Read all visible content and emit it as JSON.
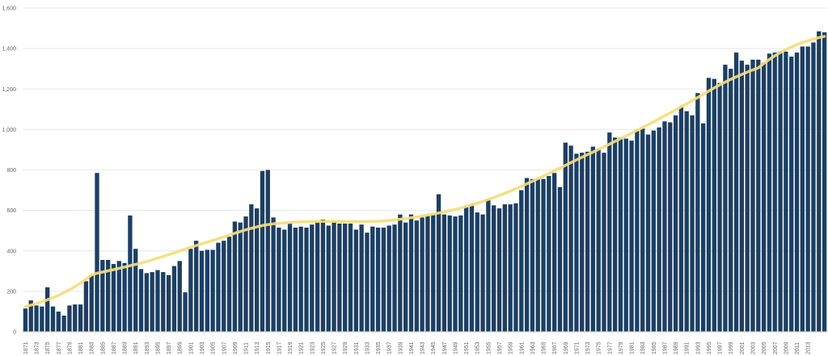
{
  "chart_data": {
    "type": "bar",
    "title": "",
    "xlabel": "",
    "ylabel": "",
    "ylim": [
      0,
      1600
    ],
    "y_ticks": [
      "0",
      "200",
      "400",
      "600",
      "800",
      "1,000",
      "1,200",
      "1,400",
      "1,600"
    ],
    "y_tick_values": [
      0,
      200,
      400,
      600,
      800,
      1000,
      1200,
      1400,
      1600
    ],
    "grid": true,
    "bar_color": "#1c3f63",
    "trend_color": "#f5dc7a",
    "x_start": 1871,
    "x_end": 2014,
    "x_label_years": [
      1871,
      1873,
      1875,
      1877,
      1879,
      1881,
      1883,
      1885,
      1887,
      1889,
      1891,
      1893,
      1895,
      1897,
      1899,
      1901,
      1903,
      1905,
      1907,
      1909,
      1911,
      1913,
      1915,
      1917,
      1919,
      1921,
      1923,
      1925,
      1927,
      1929,
      1931,
      1933,
      1935,
      1937,
      1939,
      1941,
      1943,
      1945,
      1947,
      1949,
      1951,
      1953,
      1955,
      1957,
      1959,
      1961,
      1963,
      1965,
      1967,
      1969,
      1971,
      1973,
      1975,
      1977,
      1979,
      1981,
      1983,
      1985,
      1987,
      1989,
      1991,
      1993,
      1995,
      1997,
      1999,
      2001,
      2003,
      2005,
      2007,
      2009,
      2011,
      2013
    ],
    "values": [
      115,
      155,
      130,
      125,
      220,
      125,
      100,
      80,
      130,
      135,
      135,
      250,
      280,
      785,
      355,
      355,
      335,
      350,
      340,
      575,
      410,
      310,
      290,
      295,
      305,
      295,
      280,
      325,
      350,
      195,
      410,
      450,
      400,
      405,
      405,
      440,
      450,
      470,
      545,
      540,
      570,
      630,
      610,
      795,
      800,
      565,
      515,
      505,
      535,
      515,
      520,
      515,
      530,
      545,
      555,
      525,
      545,
      535,
      535,
      535,
      505,
      530,
      490,
      520,
      515,
      515,
      525,
      530,
      580,
      540,
      580,
      550,
      565,
      575,
      580,
      680,
      580,
      575,
      570,
      575,
      620,
      630,
      590,
      580,
      655,
      625,
      610,
      630,
      630,
      635,
      700,
      760,
      755,
      755,
      755,
      770,
      785,
      715,
      935,
      920,
      880,
      885,
      890,
      915,
      905,
      885,
      985,
      960,
      960,
      955,
      945,
      995,
      1005,
      975,
      995,
      1010,
      1040,
      1035,
      1070,
      1115,
      1090,
      1070,
      1180,
      1030,
      1255,
      1250,
      1230,
      1320,
      1300,
      1380,
      1340,
      1320,
      1345,
      1345,
      1330,
      1375,
      1380,
      1385,
      1385,
      1360,
      1380,
      1410,
      1410,
      1430,
      1485,
      1480
    ],
    "trend_start": 125,
    "trend_end": 1460
  }
}
